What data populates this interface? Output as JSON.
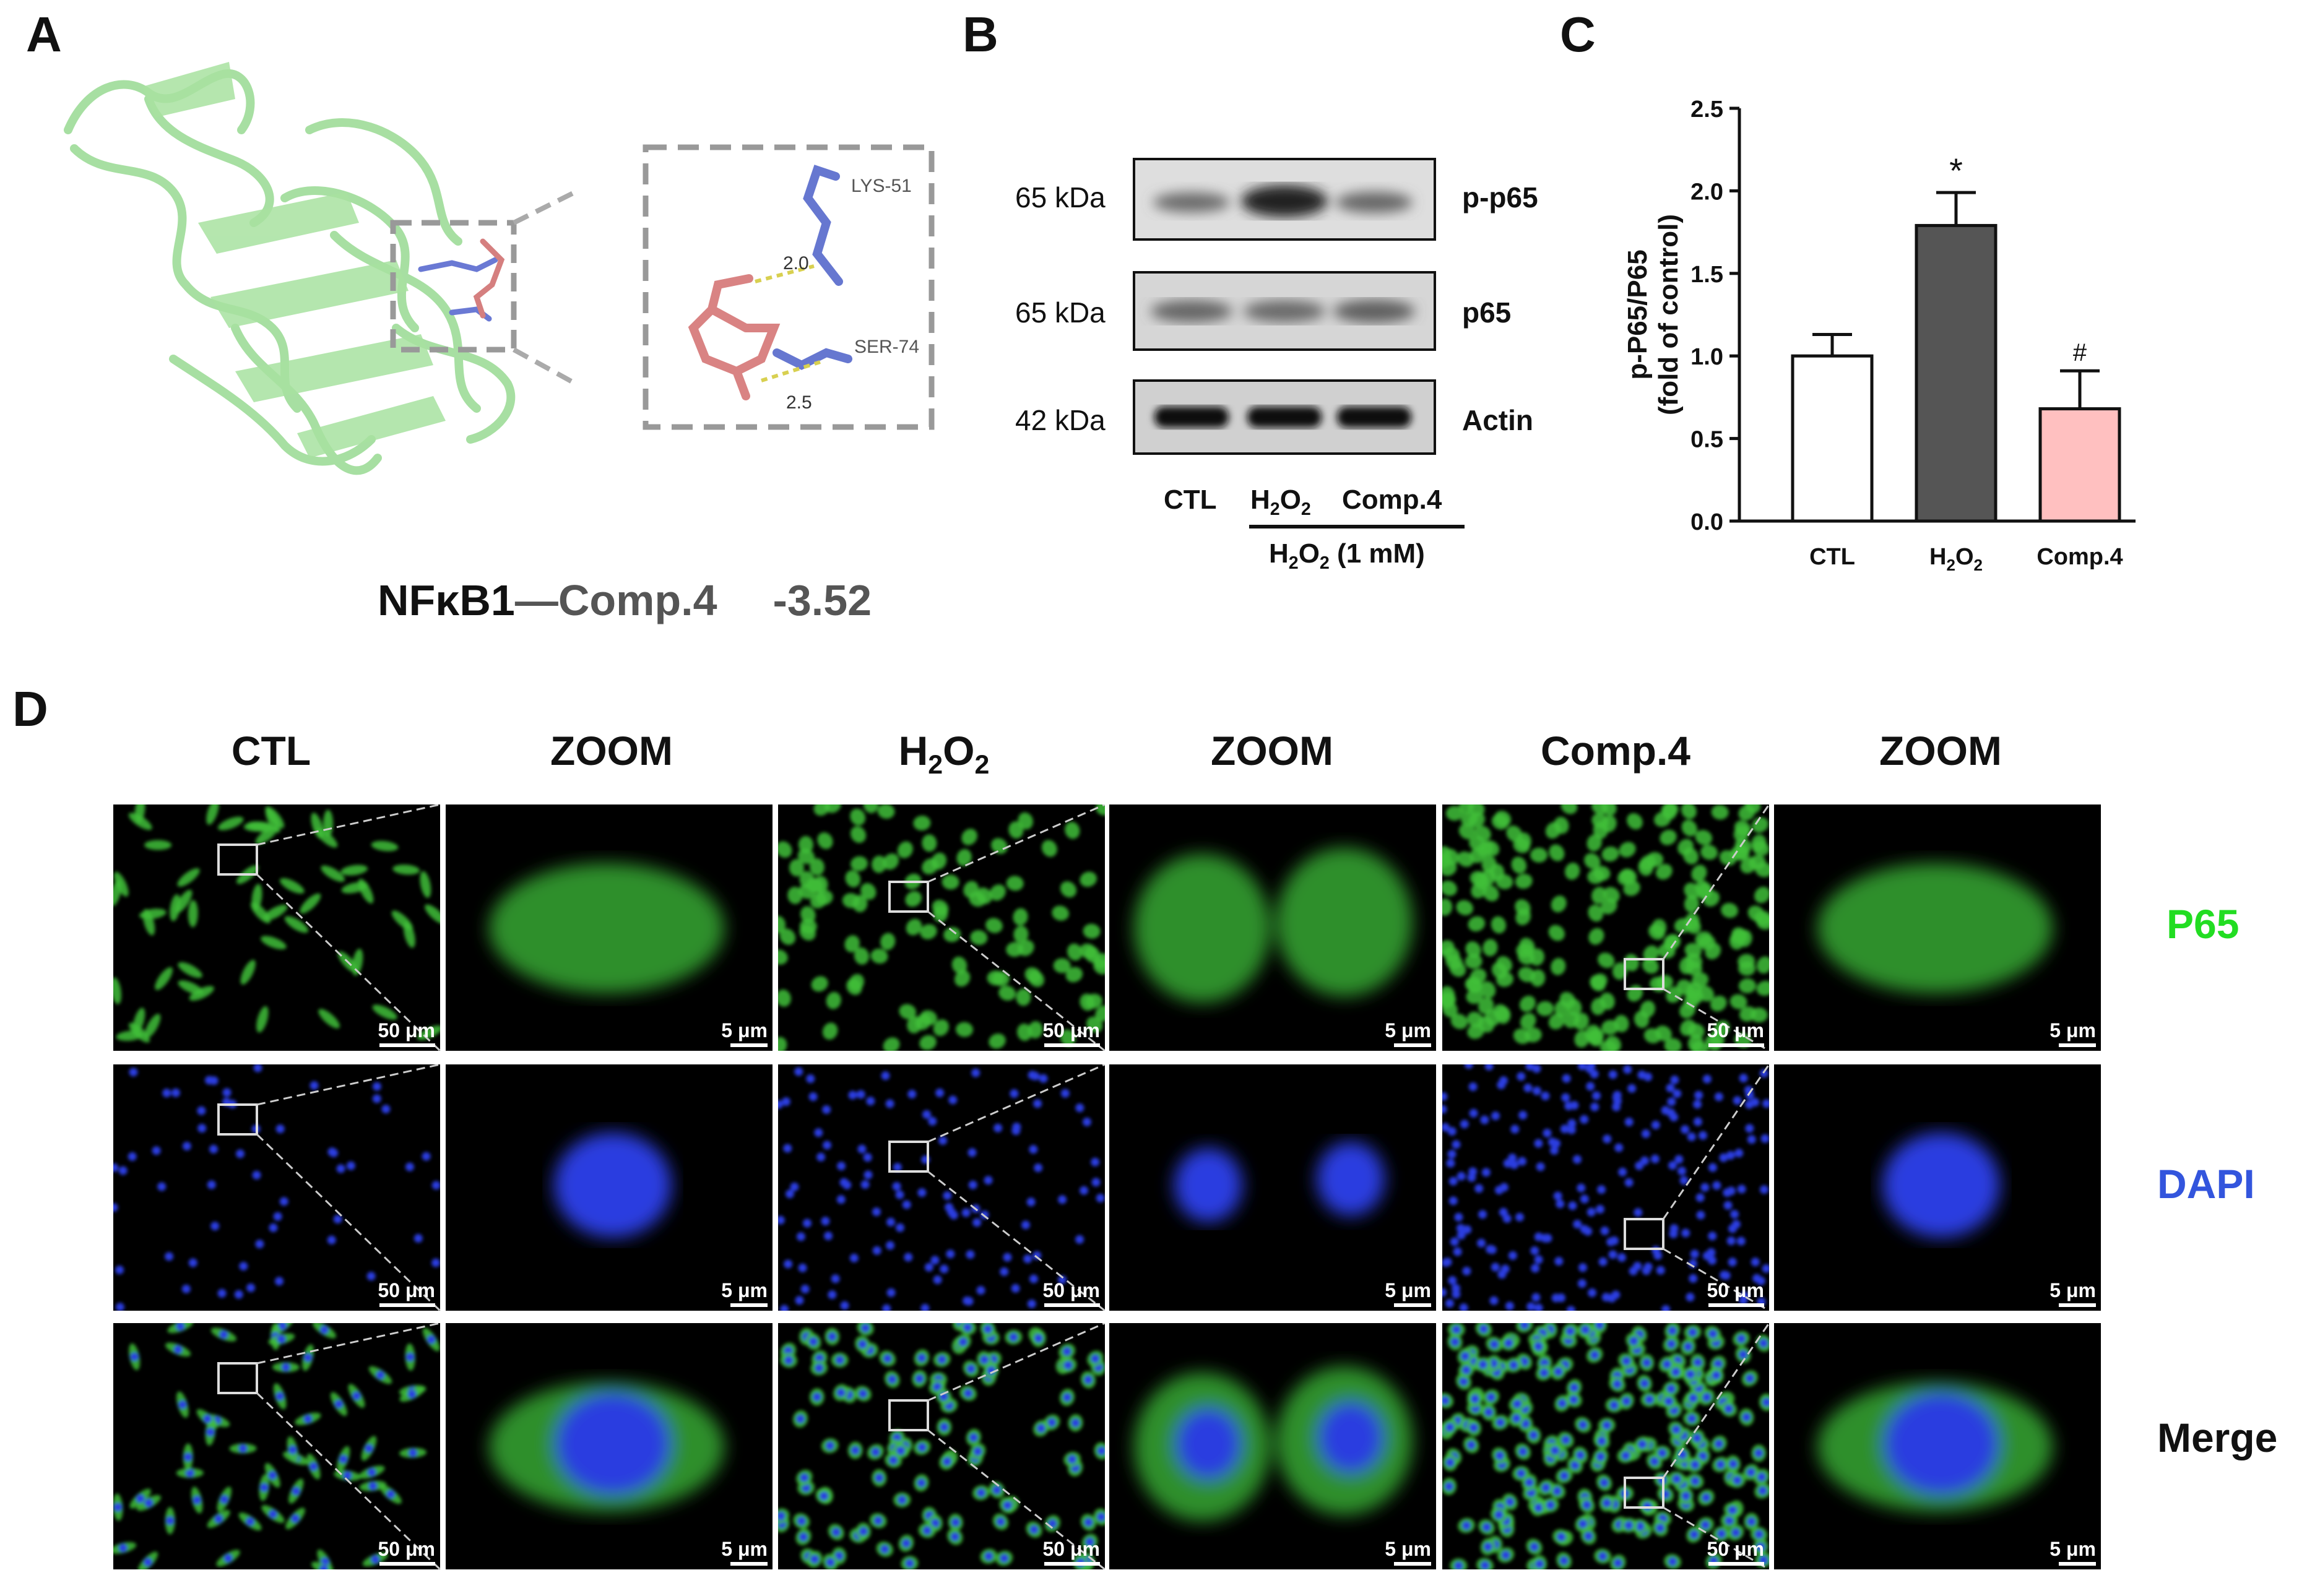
{
  "panels": {
    "A": {
      "label": "A",
      "residues": [
        "LYS-51",
        "SER-74"
      ],
      "distances": [
        "2.0",
        "2.5"
      ],
      "caption_target": "NFκB1",
      "caption_dash": "—",
      "caption_ligand": "Comp.4",
      "caption_score": "-3.52"
    },
    "B": {
      "label": "B",
      "rows": [
        {
          "size": "65 kDa",
          "protein": "p-p65"
        },
        {
          "size": "65 kDa",
          "protein": "p65"
        },
        {
          "size": "42 kDa",
          "protein": "Actin"
        }
      ],
      "lanes": [
        "CTL",
        "H2O2",
        "Comp.4"
      ],
      "treatment": "H2O2 (1 mM)"
    },
    "C": {
      "label": "C"
    },
    "D": {
      "label": "D",
      "columns": [
        "CTL",
        "ZOOM",
        "H2O2",
        "ZOOM",
        "Comp.4",
        "ZOOM"
      ],
      "rows": [
        "P65",
        "DAPI",
        "Merge"
      ],
      "scale_wide": "50 μm",
      "scale_zoom": "5 μm"
    }
  },
  "chart_data": {
    "type": "bar",
    "categories": [
      "CTL",
      "H2O2",
      "Comp.4"
    ],
    "values": [
      1.0,
      1.79,
      0.68
    ],
    "errors": [
      0.13,
      0.2,
      0.23
    ],
    "significance": [
      "",
      "*",
      "#"
    ],
    "colors": [
      "#ffffff",
      "#555555",
      "#ffc0c0"
    ],
    "ylabel_line1": "p-P65/P65",
    "ylabel_line2": "(fold of control)",
    "ylim": [
      0,
      2.5
    ],
    "yticks": [
      "0.0",
      "0.5",
      "1.0",
      "1.5",
      "2.0",
      "2.5"
    ]
  }
}
